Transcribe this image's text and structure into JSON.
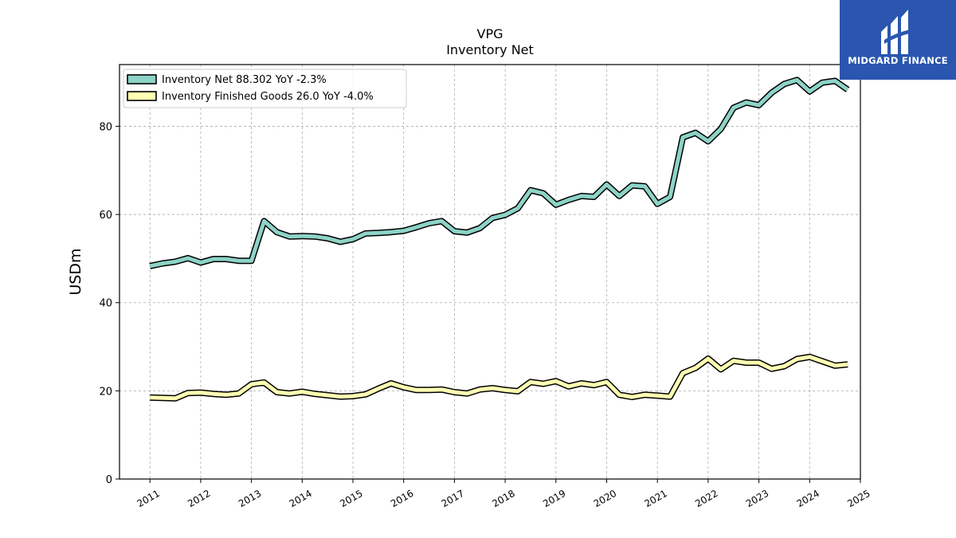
{
  "chart_data": {
    "type": "line",
    "title": "VPG",
    "subtitle": "Inventory Net",
    "xlabel": "",
    "ylabel": "USDm",
    "ylim": [
      0,
      94
    ],
    "xlim": [
      2010.4,
      2025.0
    ],
    "yticks": [
      0,
      20,
      40,
      60,
      80
    ],
    "xticks": [
      "2011",
      "2012",
      "2013",
      "2014",
      "2015",
      "2016",
      "2017",
      "2018",
      "2019",
      "2020",
      "2021",
      "2022",
      "2023",
      "2024",
      "2025"
    ],
    "grid": true,
    "legend_position": "top-left",
    "series": [
      {
        "name": "Inventory Net",
        "legend_label": "Inventory Net  88.302 YoY -2.3%",
        "color": "#8dd3c7",
        "x": [
          2011.0,
          2011.25,
          2011.5,
          2011.75,
          2012.0,
          2012.25,
          2012.5,
          2012.75,
          2013.0,
          2013.25,
          2013.5,
          2013.75,
          2014.0,
          2014.25,
          2014.5,
          2014.75,
          2015.0,
          2015.25,
          2015.5,
          2015.75,
          2016.0,
          2016.25,
          2016.5,
          2016.75,
          2017.0,
          2017.25,
          2017.5,
          2017.75,
          2018.0,
          2018.25,
          2018.5,
          2018.75,
          2019.0,
          2019.25,
          2019.5,
          2019.75,
          2020.0,
          2020.25,
          2020.5,
          2020.75,
          2021.0,
          2021.25,
          2021.5,
          2021.75,
          2022.0,
          2022.25,
          2022.5,
          2022.75,
          2023.0,
          2023.25,
          2023.5,
          2023.75,
          2024.0,
          2024.25,
          2024.5,
          2024.75
        ],
        "values": [
          48.3,
          48.9,
          49.3,
          50.1,
          49.1,
          49.9,
          49.9,
          49.5,
          49.5,
          58.5,
          56.0,
          55.0,
          55.1,
          55.0,
          54.6,
          53.8,
          54.4,
          55.7,
          55.8,
          56.0,
          56.3,
          57.1,
          58.0,
          58.5,
          56.2,
          55.9,
          56.9,
          59.2,
          59.9,
          61.4,
          65.5,
          64.8,
          62.2,
          63.3,
          64.2,
          64.0,
          66.8,
          64.2,
          66.6,
          66.4,
          62.4,
          64.0,
          77.5,
          78.5,
          76.6,
          79.4,
          84.2,
          85.4,
          84.8,
          87.6,
          89.6,
          90.5,
          87.9,
          89.9,
          90.3,
          88.302
        ]
      },
      {
        "name": "Inventory Finished Goods",
        "legend_label": "Inventory Finished Goods  26.0 YoY -4.0%",
        "color": "#ffffb3",
        "x": [
          2011.0,
          2011.25,
          2011.5,
          2011.75,
          2012.0,
          2012.25,
          2012.5,
          2012.75,
          2013.0,
          2013.25,
          2013.5,
          2013.75,
          2014.0,
          2014.25,
          2014.5,
          2014.75,
          2015.0,
          2015.25,
          2015.5,
          2015.75,
          2016.0,
          2016.25,
          2016.5,
          2016.75,
          2017.0,
          2017.25,
          2017.5,
          2017.75,
          2018.0,
          2018.25,
          2018.5,
          2018.75,
          2019.0,
          2019.25,
          2019.5,
          2019.75,
          2020.0,
          2020.25,
          2020.5,
          2020.75,
          2021.0,
          2021.25,
          2021.5,
          2021.75,
          2022.0,
          2022.25,
          2022.5,
          2022.75,
          2023.0,
          2023.25,
          2023.5,
          2023.75,
          2024.0,
          2024.25,
          2024.5,
          2024.75
        ],
        "values": [
          18.5,
          18.4,
          18.3,
          19.5,
          19.6,
          19.3,
          19.1,
          19.4,
          21.5,
          21.9,
          19.7,
          19.4,
          19.8,
          19.3,
          19.0,
          18.7,
          18.8,
          19.2,
          20.5,
          21.7,
          20.8,
          20.2,
          20.2,
          20.3,
          19.7,
          19.4,
          20.3,
          20.6,
          20.2,
          19.9,
          22.0,
          21.6,
          22.2,
          21.0,
          21.7,
          21.3,
          22.0,
          19.1,
          18.6,
          19.1,
          18.9,
          18.7,
          24.0,
          25.2,
          27.3,
          24.9,
          26.8,
          26.4,
          26.4,
          25.0,
          25.6,
          27.2,
          27.7,
          26.7,
          25.7,
          26.0
        ]
      }
    ]
  },
  "logo": {
    "text": "MIDGARD FINANCE",
    "icon": "midgard-finance-logo-icon",
    "color": "#2a56b0"
  }
}
